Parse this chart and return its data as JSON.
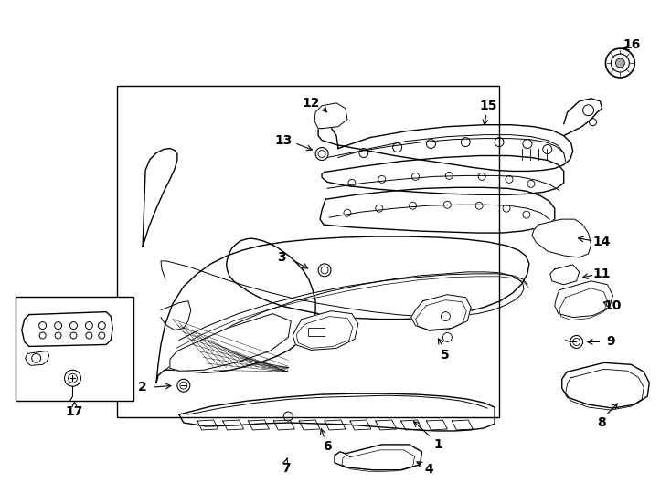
{
  "bg_color": "#ffffff",
  "line_color": "#000000",
  "fig_width": 7.34,
  "fig_height": 5.4,
  "dpi": 100,
  "label_fontsize": 10,
  "label_fontweight": "bold"
}
